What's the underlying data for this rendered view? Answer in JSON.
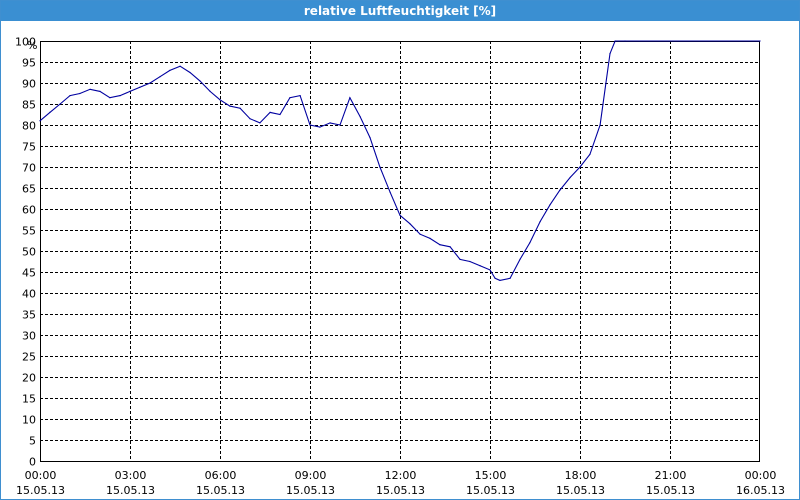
{
  "window": {
    "title": "relative Luftfeuchtigkeit [%]"
  },
  "colors": {
    "title_bar": "#3a8fd2",
    "line": "#0000a0",
    "grid": "#000000"
  },
  "chart_data": {
    "type": "line",
    "ylabel": "%",
    "ylim": [
      0,
      100
    ],
    "yticks": [
      0,
      5,
      10,
      15,
      20,
      25,
      30,
      35,
      40,
      45,
      50,
      55,
      60,
      65,
      70,
      75,
      80,
      85,
      90,
      95,
      100
    ],
    "xlim": [
      0,
      24
    ],
    "xticks": [
      {
        "hour": 0,
        "time": "00:00",
        "date": "15.05.13"
      },
      {
        "hour": 3,
        "time": "03:00",
        "date": "15.05.13"
      },
      {
        "hour": 6,
        "time": "06:00",
        "date": "15.05.13"
      },
      {
        "hour": 9,
        "time": "09:00",
        "date": "15.05.13"
      },
      {
        "hour": 12,
        "time": "12:00",
        "date": "15.05.13"
      },
      {
        "hour": 15,
        "time": "15:00",
        "date": "15.05.13"
      },
      {
        "hour": 18,
        "time": "18:00",
        "date": "15.05.13"
      },
      {
        "hour": 21,
        "time": "21:00",
        "date": "15.05.13"
      },
      {
        "hour": 24,
        "time": "00:00",
        "date": "16.05.13"
      }
    ],
    "grid": true,
    "series": [
      {
        "points": [
          [
            0.0,
            81
          ],
          [
            0.33,
            83
          ],
          [
            0.67,
            85
          ],
          [
            1.0,
            87
          ],
          [
            1.33,
            87.5
          ],
          [
            1.67,
            88.5
          ],
          [
            2.0,
            88
          ],
          [
            2.33,
            86.5
          ],
          [
            2.67,
            87
          ],
          [
            3.0,
            88
          ],
          [
            3.33,
            89
          ],
          [
            3.67,
            90
          ],
          [
            4.0,
            91.5
          ],
          [
            4.33,
            93
          ],
          [
            4.67,
            94
          ],
          [
            5.0,
            92.5
          ],
          [
            5.33,
            90.5
          ],
          [
            5.67,
            88
          ],
          [
            6.0,
            86
          ],
          [
            6.33,
            84.5
          ],
          [
            6.67,
            84
          ],
          [
            7.0,
            81.5
          ],
          [
            7.33,
            80.5
          ],
          [
            7.67,
            83
          ],
          [
            8.0,
            82.5
          ],
          [
            8.33,
            86.5
          ],
          [
            8.67,
            87
          ],
          [
            9.0,
            80
          ],
          [
            9.33,
            79.5
          ],
          [
            9.67,
            80.5
          ],
          [
            10.0,
            80
          ],
          [
            10.33,
            86.5
          ],
          [
            10.67,
            82
          ],
          [
            11.0,
            77
          ],
          [
            11.33,
            70
          ],
          [
            11.67,
            64
          ],
          [
            12.0,
            58.5
          ],
          [
            12.33,
            56.5
          ],
          [
            12.67,
            54
          ],
          [
            13.0,
            53
          ],
          [
            13.33,
            51.5
          ],
          [
            13.67,
            51
          ],
          [
            14.0,
            48
          ],
          [
            14.33,
            47.5
          ],
          [
            14.67,
            46.5
          ],
          [
            15.0,
            45.5
          ],
          [
            15.17,
            43.5
          ],
          [
            15.33,
            43
          ],
          [
            15.67,
            43.5
          ],
          [
            16.0,
            48
          ],
          [
            16.33,
            52
          ],
          [
            16.67,
            57
          ],
          [
            17.0,
            61
          ],
          [
            17.33,
            64.5
          ],
          [
            17.67,
            67.5
          ],
          [
            18.0,
            70
          ],
          [
            18.33,
            73
          ],
          [
            18.67,
            80
          ],
          [
            19.0,
            97
          ],
          [
            19.17,
            100
          ],
          [
            19.5,
            100
          ],
          [
            24.0,
            100
          ]
        ]
      }
    ]
  }
}
